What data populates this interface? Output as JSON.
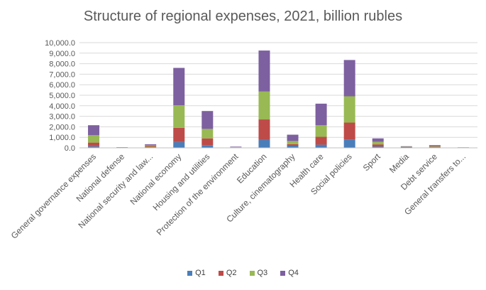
{
  "chart_data": {
    "type": "bar",
    "stacked": true,
    "title": "Structure of regional expenses, 2021, billion rubles",
    "categories": [
      "General governance expenses",
      "National defense",
      "National security and law...",
      "National economy",
      "Housing and utilities",
      "Protection of the environment",
      "Education",
      "Culture, cinematography",
      "Health care",
      "Social policies",
      "Sport",
      "Media",
      "Debt service",
      "General transfers to..."
    ],
    "series": [
      {
        "name": "Q1",
        "color": "#4a7ebb",
        "values": [
          150,
          5,
          55,
          550,
          250,
          20,
          750,
          200,
          300,
          800,
          130,
          30,
          40,
          10
        ]
      },
      {
        "name": "Q2",
        "color": "#be4b48",
        "values": [
          350,
          10,
          80,
          1350,
          650,
          25,
          1950,
          150,
          750,
          1600,
          200,
          40,
          60,
          10
        ]
      },
      {
        "name": "Q3",
        "color": "#98b954",
        "values": [
          700,
          15,
          80,
          2150,
          900,
          30,
          2650,
          300,
          1100,
          2500,
          250,
          30,
          60,
          10
        ]
      },
      {
        "name": "Q4",
        "color": "#7d60a0",
        "values": [
          950,
          30,
          120,
          3550,
          1700,
          45,
          3900,
          600,
          2050,
          3450,
          320,
          50,
          100,
          20
        ]
      }
    ],
    "yticks": [
      "0.0",
      "1,000.0",
      "2,000.0",
      "3,000.0",
      "4,000.0",
      "5,000.0",
      "6,000.0",
      "7,000.0",
      "8,000.0",
      "9,000.0",
      "10,000.0"
    ],
    "ylim": [
      0,
      10000
    ],
    "grid": true,
    "legend_position": "bottom"
  }
}
